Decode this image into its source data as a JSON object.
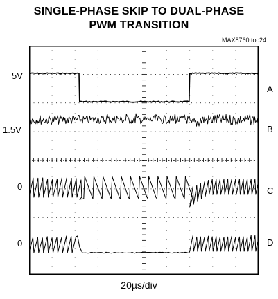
{
  "title_line1": "SINGLE-PHASE SKIP TO DUAL-PHASE",
  "title_line2": "PWM TRANSITION",
  "figure_tag": "MAX8760 toc24",
  "chart_data": {
    "type": "line",
    "xlabel": "20µs/div",
    "time_per_division": "20µs/div",
    "divisions": {
      "x": 10,
      "y": 8
    },
    "grid": true,
    "traces": [
      {
        "id": "A",
        "left_label": "5V",
        "right_label": "A",
        "segments": [
          {
            "div": [
              0,
              2.2
            ],
            "level": "high",
            "ripple": "flat"
          },
          {
            "div": [
              2.2,
              7.0
            ],
            "level": "low",
            "ripple": "flat"
          },
          {
            "div": [
              7.0,
              10
            ],
            "level": "high",
            "ripple": "flat"
          }
        ]
      },
      {
        "id": "B",
        "left_label": "1.5V",
        "right_label": "B",
        "segments": [
          {
            "div": [
              0,
              7.0
            ],
            "ripple": "dense noise"
          },
          {
            "div": [
              7.0,
              7.6
            ],
            "ripple": "transient dip"
          },
          {
            "div": [
              7.6,
              10
            ],
            "ripple": "dense sawtooth"
          }
        ]
      },
      {
        "id": "C",
        "left_label": "0",
        "right_label": "C",
        "segments": [
          {
            "div": [
              0,
              2.2
            ],
            "ripple": "sawtooth"
          },
          {
            "div": [
              2.2,
              7.0
            ],
            "ripple": "skip pulses"
          },
          {
            "div": [
              7.0,
              10
            ],
            "ripple": "sawtooth"
          }
        ]
      },
      {
        "id": "D",
        "left_label": "0",
        "right_label": "D",
        "segments": [
          {
            "div": [
              0,
              2.2
            ],
            "ripple": "sawtooth"
          },
          {
            "div": [
              2.2,
              7.0
            ],
            "ripple": "flat zero"
          },
          {
            "div": [
              7.0,
              10
            ],
            "ripple": "sawtooth"
          }
        ]
      }
    ]
  }
}
